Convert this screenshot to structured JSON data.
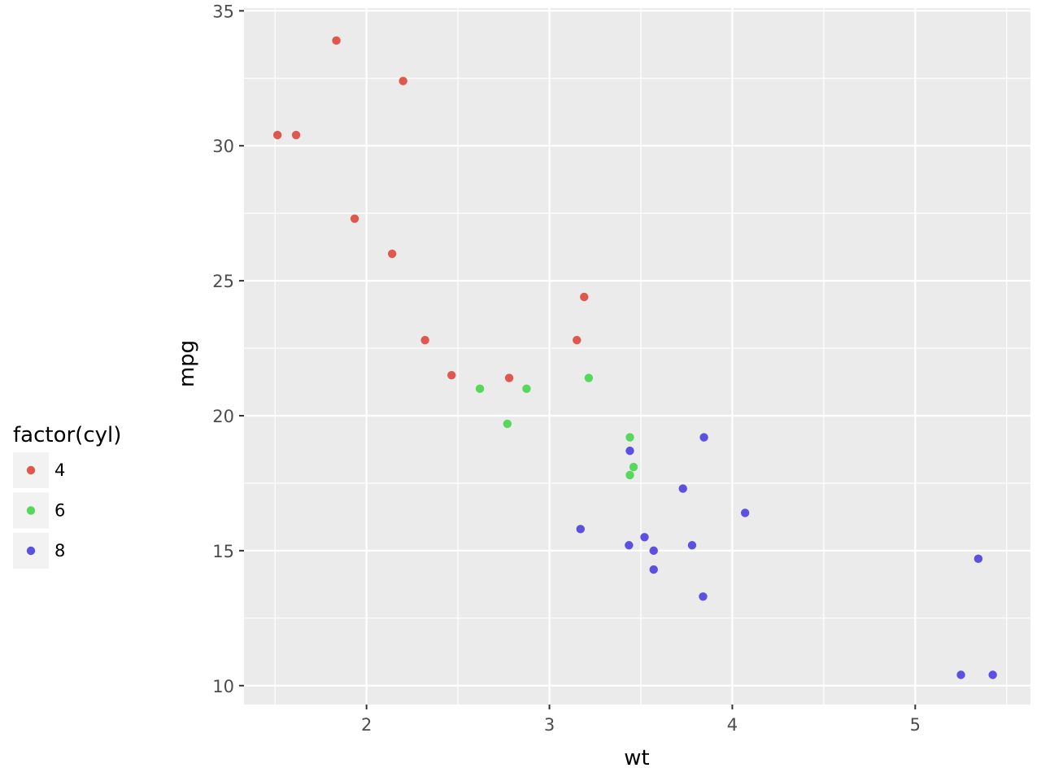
{
  "chart_data": {
    "type": "scatter",
    "title": "",
    "xlabel": "wt",
    "ylabel": "mpg",
    "xlim": [
      1.33,
      5.63
    ],
    "ylim": [
      9.3,
      35.1
    ],
    "x_ticks": [
      2,
      3,
      4,
      5
    ],
    "y_ticks": [
      10,
      15,
      20,
      25,
      30,
      35
    ],
    "grid": true,
    "panel_background": "#ebebeb",
    "legend": {
      "title": "factor(cyl)",
      "placement": "left",
      "entries": [
        {
          "label": "4",
          "color": "#e0574d"
        },
        {
          "label": "6",
          "color": "#55d85c"
        },
        {
          "label": "8",
          "color": "#5c50e0"
        }
      ]
    },
    "series": [
      {
        "name": "4",
        "color": "#e0574d",
        "points": [
          {
            "x": 2.32,
            "y": 22.8
          },
          {
            "x": 3.19,
            "y": 24.4
          },
          {
            "x": 3.15,
            "y": 22.8
          },
          {
            "x": 2.2,
            "y": 32.4
          },
          {
            "x": 1.615,
            "y": 30.4
          },
          {
            "x": 1.835,
            "y": 33.9
          },
          {
            "x": 2.465,
            "y": 21.5
          },
          {
            "x": 1.935,
            "y": 27.3
          },
          {
            "x": 2.14,
            "y": 26.0
          },
          {
            "x": 1.513,
            "y": 30.4
          },
          {
            "x": 2.78,
            "y": 21.4
          }
        ]
      },
      {
        "name": "6",
        "color": "#55d85c",
        "points": [
          {
            "x": 2.62,
            "y": 21.0
          },
          {
            "x": 2.875,
            "y": 21.0
          },
          {
            "x": 3.215,
            "y": 21.4
          },
          {
            "x": 3.46,
            "y": 18.1
          },
          {
            "x": 3.44,
            "y": 19.2
          },
          {
            "x": 3.44,
            "y": 17.8
          },
          {
            "x": 2.77,
            "y": 19.7
          }
        ]
      },
      {
        "name": "8",
        "color": "#5c50e0",
        "points": [
          {
            "x": 3.44,
            "y": 18.7
          },
          {
            "x": 3.57,
            "y": 14.3
          },
          {
            "x": 4.07,
            "y": 16.4
          },
          {
            "x": 3.73,
            "y": 17.3
          },
          {
            "x": 3.78,
            "y": 15.2
          },
          {
            "x": 5.25,
            "y": 10.4
          },
          {
            "x": 5.424,
            "y": 10.4
          },
          {
            "x": 5.345,
            "y": 14.7
          },
          {
            "x": 3.52,
            "y": 15.5
          },
          {
            "x": 3.435,
            "y": 15.2
          },
          {
            "x": 3.84,
            "y": 13.3
          },
          {
            "x": 3.845,
            "y": 19.2
          },
          {
            "x": 3.17,
            "y": 15.8
          },
          {
            "x": 3.57,
            "y": 15.0
          }
        ]
      }
    ]
  }
}
